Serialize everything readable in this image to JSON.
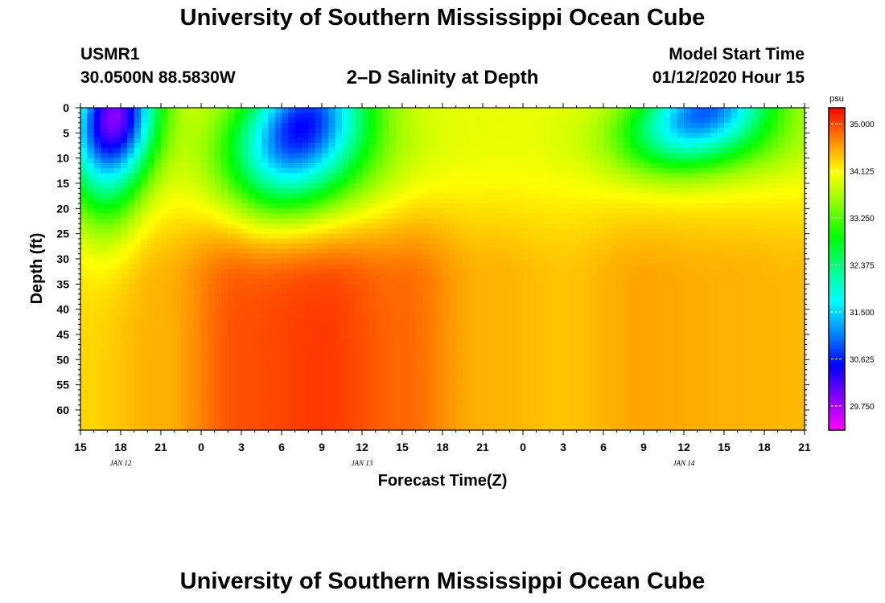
{
  "header": {
    "title": "University of Southern Mississippi Ocean Cube",
    "station_id": "USMR1",
    "station_coords": "30.0500N 88.5830W",
    "plot_title": "2–D Salinity at Depth",
    "start_label": "Model Start Time",
    "start_time": "01/12/2020 Hour 15"
  },
  "footer": {
    "title": "University of Southern Mississippi Ocean Cube"
  },
  "chart_data": {
    "type": "heatmap",
    "title": "2–D Salinity at Depth",
    "xlabel": "Forecast Time(Z)",
    "ylabel": "Depth (ft)",
    "x_tick_labels": [
      "15",
      "18",
      "21",
      "0",
      "3",
      "6",
      "9",
      "12",
      "15",
      "18",
      "21",
      "0",
      "3",
      "6",
      "9",
      "12",
      "15",
      "18",
      "21"
    ],
    "x_range_hours": [
      0,
      54
    ],
    "x_tick_step_hours": 3,
    "date_labels": [
      {
        "label": "JAN 12",
        "hour": 3
      },
      {
        "label": "JAN 13",
        "hour": 21
      },
      {
        "label": "JAN 14",
        "hour": 45
      }
    ],
    "y_tick_labels": [
      "0",
      "5",
      "10",
      "15",
      "20",
      "25",
      "30",
      "35",
      "40",
      "45",
      "50",
      "55",
      "60"
    ],
    "ylim": [
      0,
      64
    ],
    "y_inverted": true,
    "colorbar": {
      "unit": "psu",
      "min": 29.3,
      "max": 35.3,
      "tick_labels": [
        "35.000",
        "34.125",
        "33.250",
        "32.375",
        "31.500",
        "30.625",
        "29.750"
      ],
      "colors": [
        "#ff00ff",
        "#8800ff",
        "#0000ff",
        "#0088ff",
        "#00ffff",
        "#00ff88",
        "#00ff00",
        "#88ff00",
        "#ffff00",
        "#ff8800",
        "#ff0000"
      ]
    },
    "salinity_base": {
      "hours": [
        0,
        6,
        12,
        18,
        24,
        30,
        36,
        42,
        48,
        54
      ],
      "deep_psu": [
        34.3,
        34.5,
        34.95,
        35.05,
        34.85,
        34.5,
        34.4,
        34.55,
        34.5,
        34.45
      ],
      "surface_psu": 34.0
    },
    "fresh_plumes": [
      {
        "hour": 2.5,
        "depth_ft": 2,
        "center_psu": 29.9,
        "width_h": 3.0,
        "depth_scale_ft": 13,
        "tilt_h_per_ft": -0.04
      },
      {
        "hour": 16.5,
        "depth_ft": 4,
        "center_psu": 30.5,
        "width_h": 4.3,
        "depth_scale_ft": 13,
        "tilt_h_per_ft": -0.1
      },
      {
        "hour": 46.5,
        "depth_ft": 1,
        "center_psu": 30.9,
        "width_h": 4.5,
        "depth_scale_ft": 9,
        "tilt_h_per_ft": -0.18
      }
    ],
    "brackish_zones": [
      {
        "hour": 2,
        "depth_ft": 12,
        "drop_psu": 0.95,
        "width_h": 2.6,
        "depth_scale_ft": 16
      },
      {
        "hour": 17,
        "depth_ft": 12,
        "drop_psu": 0.9,
        "width_h": 6.5,
        "depth_scale_ft": 14
      },
      {
        "hour": 47,
        "depth_ft": 6,
        "drop_psu": 0.75,
        "width_h": 7,
        "depth_scale_ft": 8
      }
    ]
  }
}
